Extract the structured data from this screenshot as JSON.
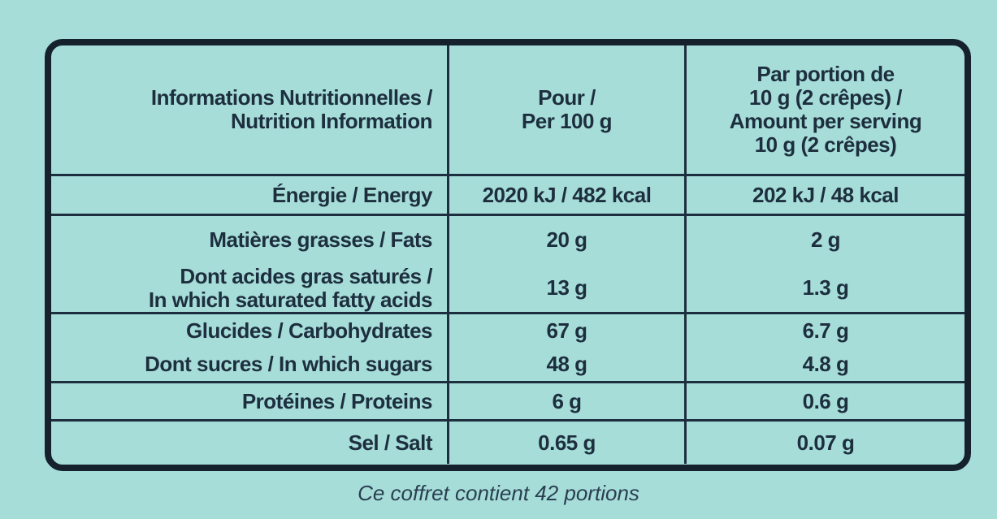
{
  "table": {
    "header": [
      [
        "Informations Nutritionnelles /",
        "Nutrition Information"
      ],
      [
        "Pour /",
        "Per 100 g"
      ],
      [
        "Par portion de",
        "10 g (2 crêpes) /",
        "Amount per serving",
        "10 g (2 crêpes)"
      ]
    ],
    "groups": [
      [
        [
          [
            "Énergie / Energy"
          ],
          "2020 kJ / 482 kcal",
          "202 kJ / 48 kcal"
        ]
      ],
      [
        [
          [
            "Matières grasses / Fats"
          ],
          "20 g",
          "2 g"
        ],
        [
          [
            "Dont acides gras saturés /",
            "In which saturated fatty acids"
          ],
          "13 g",
          "1.3 g"
        ]
      ],
      [
        [
          [
            "Glucides / Carbohydrates"
          ],
          "67 g",
          "6.7 g"
        ],
        [
          [
            "Dont sucres / In which sugars"
          ],
          "48 g",
          "4.8 g"
        ]
      ],
      [
        [
          [
            "Protéines / Proteins"
          ],
          "6 g",
          "0.6 g"
        ]
      ],
      [
        [
          [
            "Sel / Salt"
          ],
          "0.65 g",
          "0.07 g"
        ]
      ]
    ]
  },
  "footer": "Ce coffret contient 42 portions"
}
